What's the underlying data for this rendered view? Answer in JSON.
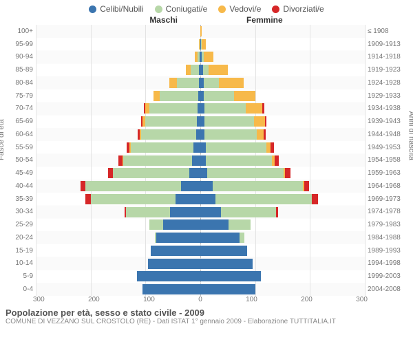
{
  "colors": {
    "celibi": "#3b75af",
    "coniugati": "#b7d7a8",
    "vedovi": "#f7b94a",
    "divorziati": "#d62728",
    "grid": "#e3e3e3",
    "center": "#bbbbbb",
    "bg": "#ffffff"
  },
  "legend": [
    {
      "key": "celibi",
      "label": "Celibi/Nubili"
    },
    {
      "key": "coniugati",
      "label": "Coniugati/e"
    },
    {
      "key": "vedovi",
      "label": "Vedovi/e"
    },
    {
      "key": "divorziati",
      "label": "Divorziati/e"
    }
  ],
  "header_male": "Maschi",
  "header_female": "Femmine",
  "left_axis_label": "Fasce di età",
  "right_axis_label": "Anni di nascita",
  "x_ticks": [
    300,
    200,
    100,
    0,
    100,
    200,
    300
  ],
  "x_max_each_side": 300,
  "age_bands": [
    {
      "age": "0-4",
      "year": "2004-2008",
      "m": {
        "c": 105,
        "cg": 0,
        "v": 0,
        "d": 0
      },
      "f": {
        "c": 100,
        "cg": 0,
        "v": 0,
        "d": 0
      }
    },
    {
      "age": "5-9",
      "year": "1999-2003",
      "m": {
        "c": 115,
        "cg": 0,
        "v": 0,
        "d": 0
      },
      "f": {
        "c": 110,
        "cg": 0,
        "v": 0,
        "d": 0
      }
    },
    {
      "age": "10-14",
      "year": "1994-1998",
      "m": {
        "c": 95,
        "cg": 0,
        "v": 0,
        "d": 0
      },
      "f": {
        "c": 95,
        "cg": 0,
        "v": 0,
        "d": 0
      }
    },
    {
      "age": "15-19",
      "year": "1989-1993",
      "m": {
        "c": 90,
        "cg": 0,
        "v": 0,
        "d": 0
      },
      "f": {
        "c": 85,
        "cg": 0,
        "v": 0,
        "d": 0
      }
    },
    {
      "age": "20-24",
      "year": "1984-1988",
      "m": {
        "c": 80,
        "cg": 3,
        "v": 0,
        "d": 0
      },
      "f": {
        "c": 72,
        "cg": 8,
        "v": 0,
        "d": 0
      }
    },
    {
      "age": "25-29",
      "year": "1979-1983",
      "m": {
        "c": 68,
        "cg": 25,
        "v": 0,
        "d": 0
      },
      "f": {
        "c": 52,
        "cg": 40,
        "v": 0,
        "d": 0
      }
    },
    {
      "age": "30-34",
      "year": "1974-1978",
      "m": {
        "c": 55,
        "cg": 80,
        "v": 0,
        "d": 3
      },
      "f": {
        "c": 38,
        "cg": 100,
        "v": 0,
        "d": 4
      }
    },
    {
      "age": "35-39",
      "year": "1969-1973",
      "m": {
        "c": 45,
        "cg": 155,
        "v": 0,
        "d": 10
      },
      "f": {
        "c": 28,
        "cg": 175,
        "v": 0,
        "d": 12
      }
    },
    {
      "age": "40-44",
      "year": "1964-1968",
      "m": {
        "c": 35,
        "cg": 175,
        "v": 0,
        "d": 8
      },
      "f": {
        "c": 22,
        "cg": 165,
        "v": 2,
        "d": 10
      }
    },
    {
      "age": "45-49",
      "year": "1959-1963",
      "m": {
        "c": 20,
        "cg": 140,
        "v": 0,
        "d": 8
      },
      "f": {
        "c": 12,
        "cg": 140,
        "v": 2,
        "d": 10
      }
    },
    {
      "age": "50-54",
      "year": "1954-1958",
      "m": {
        "c": 15,
        "cg": 125,
        "v": 2,
        "d": 8
      },
      "f": {
        "c": 10,
        "cg": 120,
        "v": 5,
        "d": 8
      }
    },
    {
      "age": "55-59",
      "year": "1949-1953",
      "m": {
        "c": 12,
        "cg": 115,
        "v": 2,
        "d": 6
      },
      "f": {
        "c": 10,
        "cg": 110,
        "v": 8,
        "d": 6
      }
    },
    {
      "age": "60-64",
      "year": "1944-1948",
      "m": {
        "c": 8,
        "cg": 100,
        "v": 3,
        "d": 3
      },
      "f": {
        "c": 8,
        "cg": 95,
        "v": 12,
        "d": 4
      }
    },
    {
      "age": "65-69",
      "year": "1939-1943",
      "m": {
        "c": 6,
        "cg": 95,
        "v": 5,
        "d": 2
      },
      "f": {
        "c": 8,
        "cg": 90,
        "v": 20,
        "d": 3
      }
    },
    {
      "age": "70-74",
      "year": "1934-1938",
      "m": {
        "c": 5,
        "cg": 88,
        "v": 8,
        "d": 2
      },
      "f": {
        "c": 8,
        "cg": 75,
        "v": 30,
        "d": 4
      }
    },
    {
      "age": "75-79",
      "year": "1929-1933",
      "m": {
        "c": 4,
        "cg": 70,
        "v": 12,
        "d": 0
      },
      "f": {
        "c": 6,
        "cg": 55,
        "v": 40,
        "d": 0
      }
    },
    {
      "age": "80-84",
      "year": "1924-1928",
      "m": {
        "c": 3,
        "cg": 40,
        "v": 14,
        "d": 0
      },
      "f": {
        "c": 6,
        "cg": 28,
        "v": 45,
        "d": 0
      }
    },
    {
      "age": "85-89",
      "year": "1919-1923",
      "m": {
        "c": 2,
        "cg": 15,
        "v": 10,
        "d": 0
      },
      "f": {
        "c": 5,
        "cg": 10,
        "v": 35,
        "d": 0
      }
    },
    {
      "age": "90-94",
      "year": "1914-1918",
      "m": {
        "c": 1,
        "cg": 4,
        "v": 5,
        "d": 0
      },
      "f": {
        "c": 3,
        "cg": 3,
        "v": 18,
        "d": 0
      }
    },
    {
      "age": "95-99",
      "year": "1909-1913",
      "m": {
        "c": 0,
        "cg": 1,
        "v": 2,
        "d": 0
      },
      "f": {
        "c": 1,
        "cg": 1,
        "v": 8,
        "d": 0
      }
    },
    {
      "age": "100+",
      "year": "≤ 1908",
      "m": {
        "c": 0,
        "cg": 0,
        "v": 0,
        "d": 0
      },
      "f": {
        "c": 0,
        "cg": 0,
        "v": 2,
        "d": 0
      }
    }
  ],
  "footer_title": "Popolazione per età, sesso e stato civile - 2009",
  "footer_source": "COMUNE DI VEZZANO SUL CROSTOLO (RE) - Dati ISTAT 1° gennaio 2009 - Elaborazione TUTTITALIA.IT"
}
